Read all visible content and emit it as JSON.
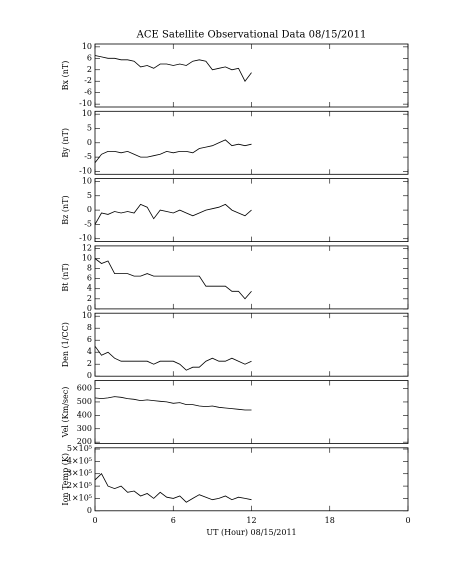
{
  "chart_data": [
    {
      "type": "line",
      "title": "ACE Satellite Observational Data   08/15/2011",
      "ylabel": "Bx (nT)",
      "x": [
        0,
        0.5,
        1,
        1.5,
        2,
        2.5,
        3,
        3.5,
        4,
        4.5,
        5,
        5.5,
        6,
        6.5,
        7,
        7.5,
        8,
        8.5,
        9,
        9.5,
        10,
        10.5,
        11,
        11.5,
        12
      ],
      "series": [
        {
          "color": "#000000",
          "values": [
            7,
            6.5,
            6,
            6,
            5.5,
            5.5,
            5,
            3,
            3.5,
            2.5,
            4,
            4,
            3.5,
            4,
            3.5,
            5,
            5.5,
            5,
            2,
            2.5,
            3,
            2,
            2.5,
            -2,
            1
          ]
        }
      ],
      "xlim": [
        0,
        24
      ],
      "ylim": [
        -11,
        11
      ],
      "yticks": [
        -10,
        -6,
        -2,
        2,
        6,
        10
      ]
    },
    {
      "type": "line",
      "ylabel": "By (nT)",
      "x": [
        0,
        0.5,
        1,
        1.5,
        2,
        2.5,
        3,
        3.5,
        4,
        4.5,
        5,
        5.5,
        6,
        6.5,
        7,
        7.5,
        8,
        8.5,
        9,
        9.5,
        10,
        10.5,
        11,
        11.5,
        12
      ],
      "series": [
        {
          "color": "#000000",
          "values": [
            -7,
            -4,
            -3,
            -3,
            -3.5,
            -3,
            -4,
            -5,
            -5,
            -4.5,
            -4,
            -3,
            -3.5,
            -3,
            -3,
            -3.5,
            -2,
            -1.5,
            -1,
            0,
            1,
            -1,
            -0.5,
            -1,
            -0.5
          ]
        }
      ],
      "xlim": [
        0,
        24
      ],
      "ylim": [
        -11,
        11
      ],
      "yticks": [
        -10,
        -5,
        0,
        5,
        10
      ]
    },
    {
      "type": "line",
      "ylabel": "Bz (nT)",
      "x": [
        0,
        0.5,
        1,
        1.5,
        2,
        2.5,
        3,
        3.5,
        4,
        4.5,
        5,
        5.5,
        6,
        6.5,
        7,
        7.5,
        8,
        8.5,
        9,
        9.5,
        10,
        10.5,
        11,
        11.5,
        12
      ],
      "series": [
        {
          "color": "#000000",
          "values": [
            -5,
            -1,
            -1.5,
            -0.5,
            -1,
            -0.5,
            -1,
            2,
            1,
            -3,
            0,
            -0.5,
            -1,
            0,
            -1,
            -2,
            -1,
            0,
            0.5,
            1,
            2,
            0,
            -1,
            -2,
            0
          ]
        }
      ],
      "xlim": [
        0,
        24
      ],
      "ylim": [
        -11,
        11
      ],
      "yticks": [
        -10,
        -5,
        0,
        5,
        10
      ]
    },
    {
      "type": "line",
      "ylabel": "Bt (nT)",
      "x": [
        0,
        0.5,
        1,
        1.5,
        2,
        2.5,
        3,
        3.5,
        4,
        4.5,
        5,
        5.5,
        6,
        6.5,
        7,
        7.5,
        8,
        8.5,
        9,
        9.5,
        10,
        10.5,
        11,
        11.5,
        12
      ],
      "series": [
        {
          "color": "#000000",
          "values": [
            10,
            9,
            9.5,
            7,
            7,
            7,
            6.5,
            6.5,
            7,
            6.5,
            6.5,
            6.5,
            6.5,
            6.5,
            6.5,
            6.5,
            6.5,
            4.5,
            4.5,
            4.5,
            4.5,
            3.5,
            3.5,
            2,
            3.5
          ]
        }
      ],
      "xlim": [
        0,
        24
      ],
      "ylim": [
        0,
        12.5
      ],
      "yticks": [
        0,
        2,
        4,
        6,
        8,
        10,
        12
      ]
    },
    {
      "type": "line",
      "ylabel": "Den (1/CC)",
      "x": [
        0,
        0.5,
        1,
        1.5,
        2,
        2.5,
        3,
        3.5,
        4,
        4.5,
        5,
        5.5,
        6,
        6.5,
        7,
        7.5,
        8,
        8.5,
        9,
        9.5,
        10,
        10.5,
        11,
        11.5,
        12
      ],
      "series": [
        {
          "color": "#000000",
          "values": [
            5,
            3.5,
            4,
            3,
            2.5,
            2.5,
            2.5,
            2.5,
            2.5,
            2,
            2.5,
            2.5,
            2.5,
            2,
            1,
            1.5,
            1.5,
            2.5,
            3,
            2.5,
            2.5,
            3,
            2.5,
            2,
            2.5
          ]
        }
      ],
      "xlim": [
        0,
        24
      ],
      "ylim": [
        0,
        10.5
      ],
      "yticks": [
        0,
        2,
        4,
        6,
        8,
        10
      ]
    },
    {
      "type": "line",
      "ylabel": "Vel (Km/sec)",
      "x": [
        0,
        0.5,
        1,
        1.5,
        2,
        2.5,
        3,
        3.5,
        4,
        4.5,
        5,
        5.5,
        6,
        6.5,
        7,
        7.5,
        8,
        8.5,
        9,
        9.5,
        10,
        10.5,
        11,
        11.5,
        12
      ],
      "series": [
        {
          "color": "#000000",
          "values": [
            530,
            525,
            530,
            540,
            535,
            525,
            520,
            510,
            515,
            510,
            505,
            500,
            490,
            495,
            480,
            480,
            470,
            465,
            470,
            460,
            455,
            450,
            445,
            440,
            440
          ]
        }
      ],
      "xlim": [
        0,
        24
      ],
      "ylim": [
        190,
        660
      ],
      "yticks": [
        200,
        300,
        400,
        500,
        600
      ]
    },
    {
      "type": "line",
      "ylabel": "Ion Temp (K)",
      "xlabel": "UT (Hour)  08/15/2011",
      "x": [
        0,
        0.5,
        1,
        1.5,
        2,
        2.5,
        3,
        3.5,
        4,
        4.5,
        5,
        5.5,
        6,
        6.5,
        7,
        7.5,
        8,
        8.5,
        9,
        9.5,
        10,
        10.5,
        11,
        11.5,
        12
      ],
      "series": [
        {
          "color": "#000000",
          "values": [
            250000,
            300000,
            200000,
            180000,
            200000,
            150000,
            160000,
            120000,
            140000,
            100000,
            150000,
            110000,
            100000,
            120000,
            70000,
            100000,
            130000,
            110000,
            90000,
            100000,
            120000,
            90000,
            110000,
            100000,
            90000
          ]
        }
      ],
      "xlim": [
        0,
        24
      ],
      "xticks": [
        0,
        6,
        12,
        18,
        {
          "value": 24,
          "label": "0"
        }
      ],
      "ylim": [
        0,
        510000
      ],
      "yticks": [
        0,
        {
          "value": 100000,
          "label": "1×10⁵"
        },
        {
          "value": 200000,
          "label": "2×10⁵"
        },
        {
          "value": 300000,
          "label": "3×10⁵"
        },
        {
          "value": 400000,
          "label": "4×10⁵"
        },
        {
          "value": 500000,
          "label": "5×10⁵"
        }
      ]
    }
  ]
}
